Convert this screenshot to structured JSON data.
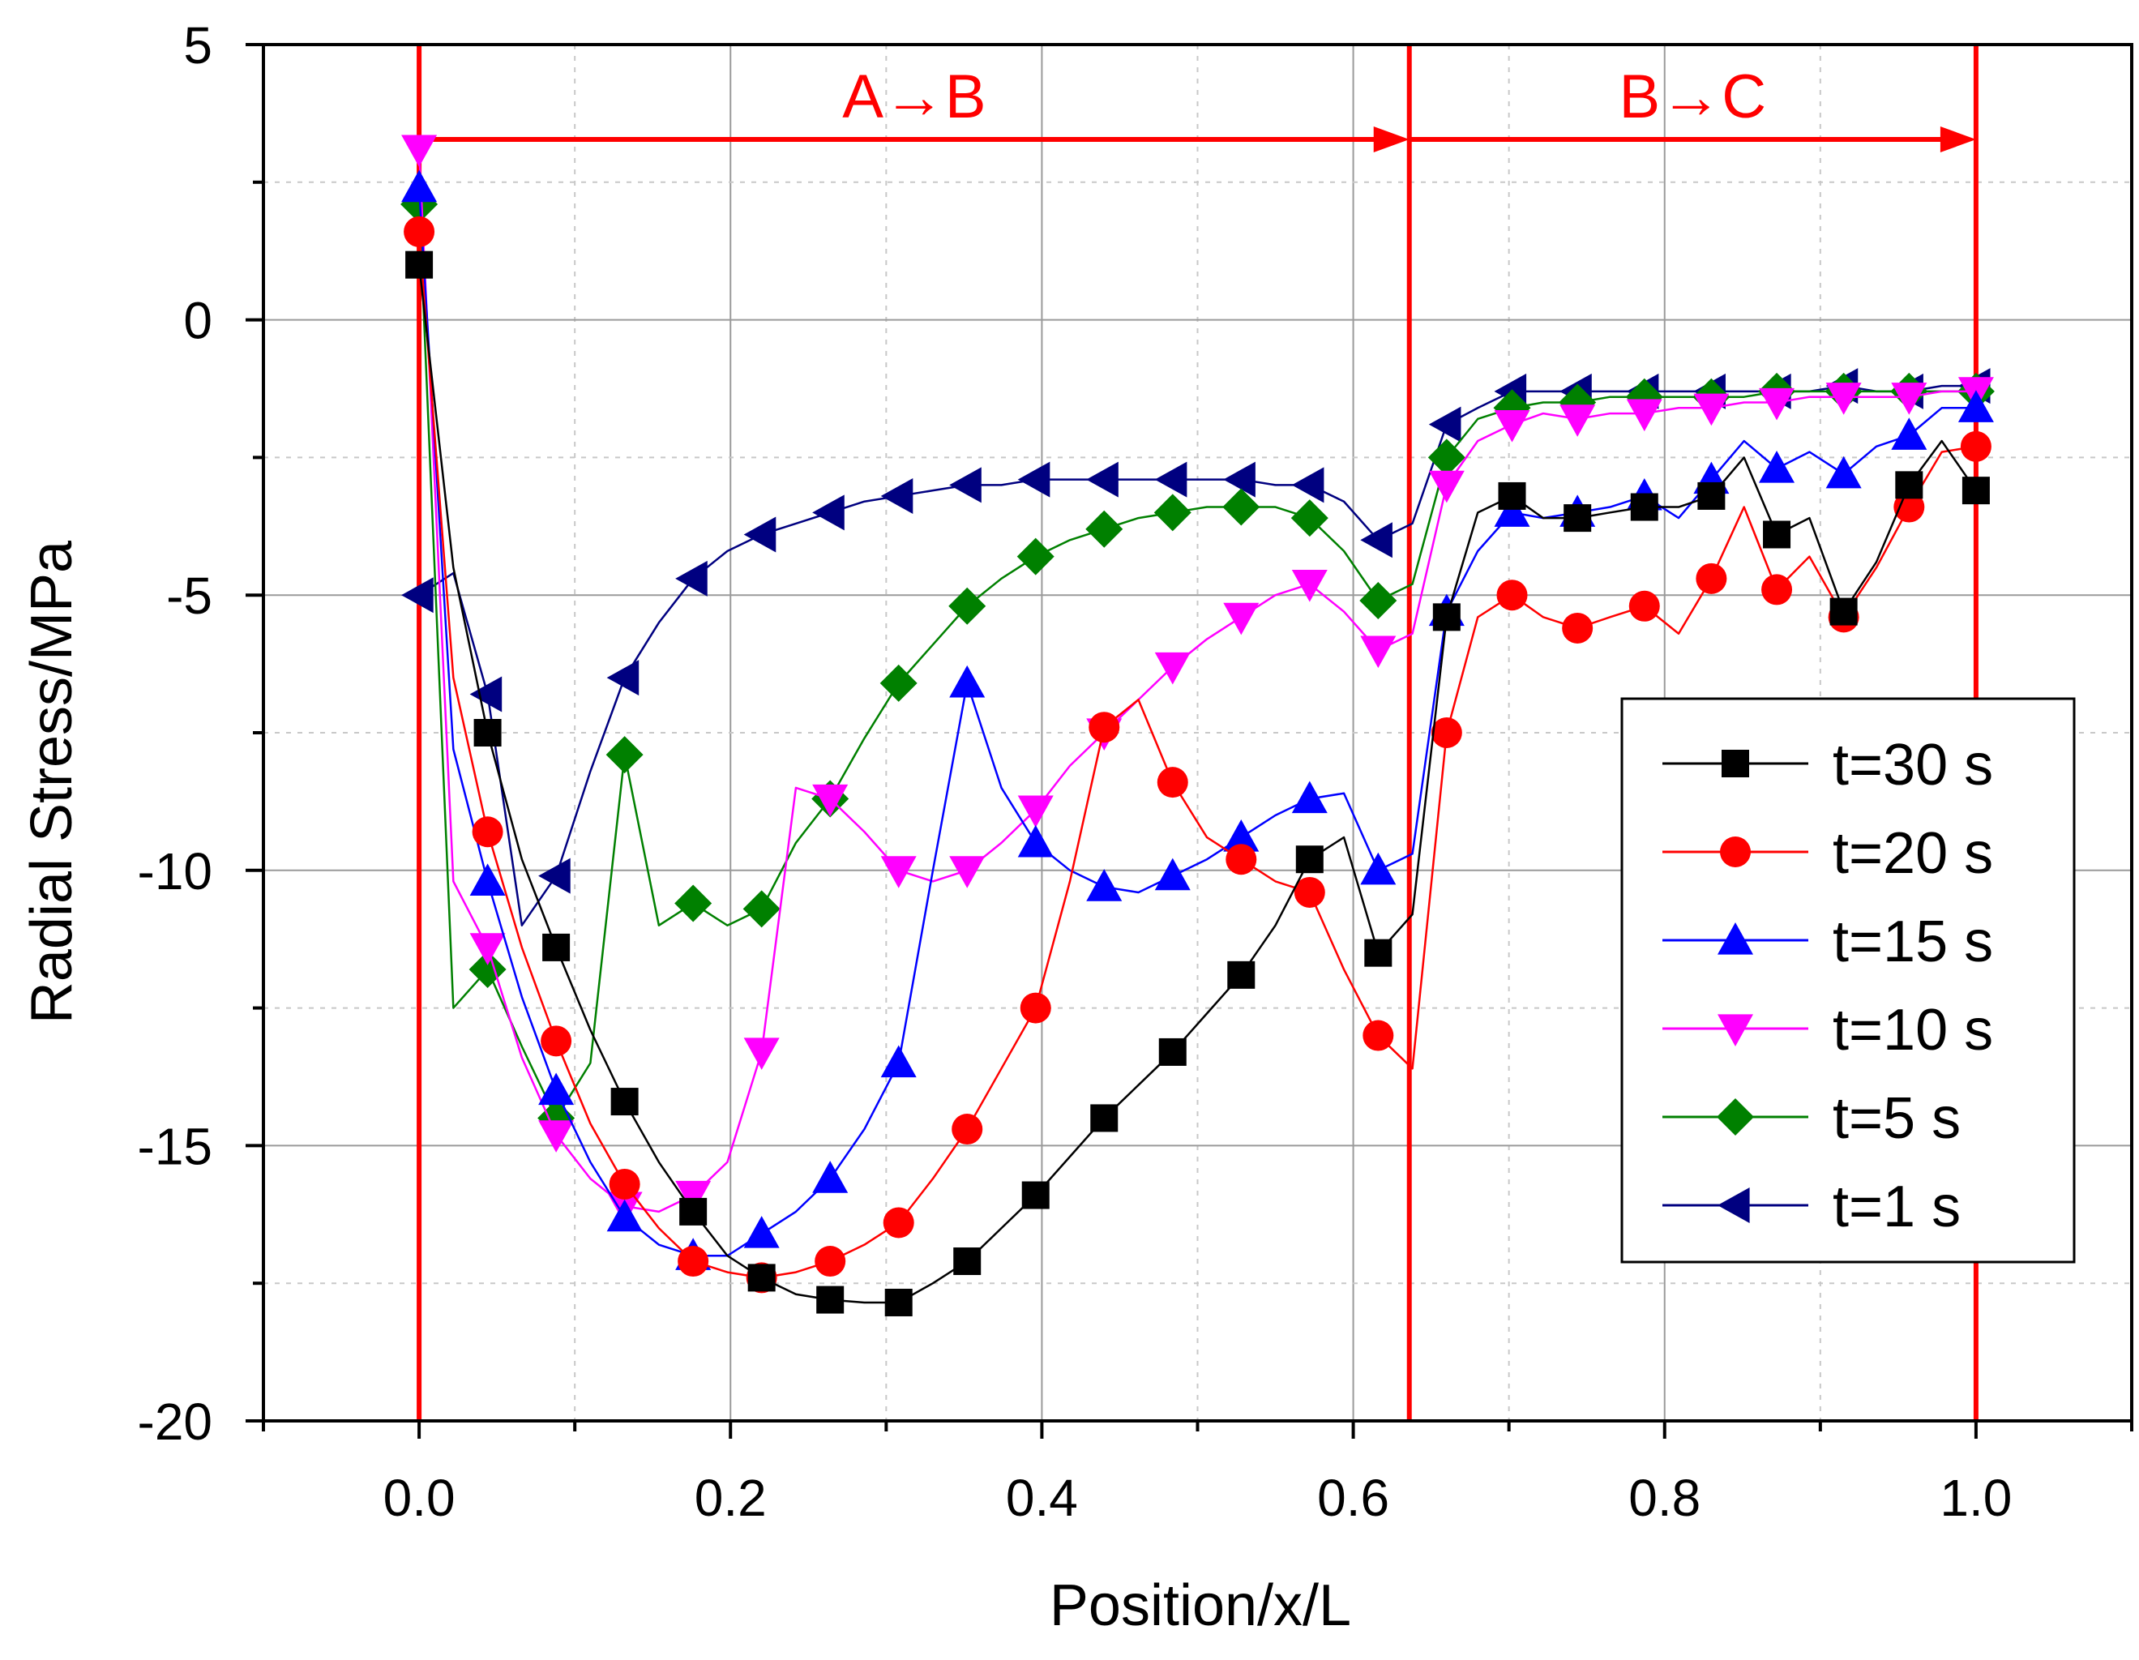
{
  "chart_data": {
    "type": "line",
    "title": "",
    "xlabel": "Position/x/L",
    "ylabel": "Radial Stress/MPa",
    "xlim": [
      -0.1,
      1.1
    ],
    "ylim": [
      -20,
      5
    ],
    "x_ticks": [
      "0.0",
      "0.2",
      "0.4",
      "0.6",
      "0.8",
      "1.0"
    ],
    "y_ticks": [
      "5",
      "0",
      "-5",
      "-10",
      "-15",
      "-20"
    ],
    "grid": true,
    "legend_position": "lower-right",
    "annotations": {
      "segment_ab_label": "A→B",
      "segment_bc_label": "B→C",
      "boundaries_x": [
        0.0,
        0.636,
        1.0
      ],
      "color": "#ff0000"
    },
    "series": [
      {
        "name": "t=30 s",
        "color": "#000000",
        "marker": "square",
        "points": [
          [
            0.0,
            1.0
          ],
          [
            0.022,
            -4.5
          ],
          [
            0.044,
            -7.5
          ],
          [
            0.066,
            -9.8
          ],
          [
            0.088,
            -11.4
          ],
          [
            0.11,
            -12.9
          ],
          [
            0.132,
            -14.2
          ],
          [
            0.154,
            -15.3
          ],
          [
            0.176,
            -16.2
          ],
          [
            0.198,
            -17.0
          ],
          [
            0.22,
            -17.4
          ],
          [
            0.242,
            -17.7
          ],
          [
            0.264,
            -17.8
          ],
          [
            0.286,
            -17.85
          ],
          [
            0.308,
            -17.85
          ],
          [
            0.33,
            -17.5
          ],
          [
            0.352,
            -17.1
          ],
          [
            0.374,
            -16.5
          ],
          [
            0.396,
            -15.9
          ],
          [
            0.418,
            -15.2
          ],
          [
            0.44,
            -14.5
          ],
          [
            0.462,
            -13.9
          ],
          [
            0.484,
            -13.3
          ],
          [
            0.506,
            -12.6
          ],
          [
            0.528,
            -11.9
          ],
          [
            0.55,
            -11.0
          ],
          [
            0.572,
            -9.8
          ],
          [
            0.594,
            -9.4
          ],
          [
            0.616,
            -11.5
          ],
          [
            0.638,
            -10.8
          ],
          [
            0.66,
            -5.4
          ],
          [
            0.68,
            -3.5
          ],
          [
            0.702,
            -3.2
          ],
          [
            0.722,
            -3.6
          ],
          [
            0.744,
            -3.6
          ],
          [
            0.765,
            -3.5
          ],
          [
            0.787,
            -3.4
          ],
          [
            0.809,
            -3.4
          ],
          [
            0.83,
            -3.2
          ],
          [
            0.851,
            -2.5
          ],
          [
            0.872,
            -3.9
          ],
          [
            0.893,
            -3.6
          ],
          [
            0.915,
            -5.3
          ],
          [
            0.936,
            -4.4
          ],
          [
            0.957,
            -3.0
          ],
          [
            0.978,
            -2.2
          ],
          [
            1.0,
            -3.1
          ]
        ],
        "marker_every": 2
      },
      {
        "name": "t=20 s",
        "color": "#ff0000",
        "marker": "circle",
        "points": [
          [
            0.0,
            1.6
          ],
          [
            0.022,
            -6.5
          ],
          [
            0.044,
            -9.3
          ],
          [
            0.066,
            -11.4
          ],
          [
            0.088,
            -13.1
          ],
          [
            0.11,
            -14.6
          ],
          [
            0.132,
            -15.7
          ],
          [
            0.154,
            -16.5
          ],
          [
            0.176,
            -17.1
          ],
          [
            0.198,
            -17.3
          ],
          [
            0.22,
            -17.4
          ],
          [
            0.242,
            -17.3
          ],
          [
            0.264,
            -17.1
          ],
          [
            0.286,
            -16.8
          ],
          [
            0.308,
            -16.4
          ],
          [
            0.33,
            -15.6
          ],
          [
            0.352,
            -14.7
          ],
          [
            0.374,
            -13.6
          ],
          [
            0.396,
            -12.5
          ],
          [
            0.418,
            -10.2
          ],
          [
            0.44,
            -7.4
          ],
          [
            0.462,
            -6.9
          ],
          [
            0.484,
            -8.4
          ],
          [
            0.506,
            -9.4
          ],
          [
            0.528,
            -9.8
          ],
          [
            0.55,
            -10.2
          ],
          [
            0.572,
            -10.4
          ],
          [
            0.594,
            -11.8
          ],
          [
            0.616,
            -13.0
          ],
          [
            0.638,
            -13.6
          ],
          [
            0.66,
            -7.5
          ],
          [
            0.68,
            -5.4
          ],
          [
            0.702,
            -5.0
          ],
          [
            0.722,
            -5.4
          ],
          [
            0.744,
            -5.6
          ],
          [
            0.765,
            -5.4
          ],
          [
            0.787,
            -5.2
          ],
          [
            0.809,
            -5.7
          ],
          [
            0.83,
            -4.7
          ],
          [
            0.851,
            -3.4
          ],
          [
            0.872,
            -4.9
          ],
          [
            0.893,
            -4.3
          ],
          [
            0.915,
            -5.4
          ],
          [
            0.936,
            -4.5
          ],
          [
            0.957,
            -3.4
          ],
          [
            0.978,
            -2.4
          ],
          [
            1.0,
            -2.3
          ]
        ],
        "marker_every": 2
      },
      {
        "name": "t=15 s",
        "color": "#0000ff",
        "marker": "triangle-up",
        "points": [
          [
            0.0,
            2.4
          ],
          [
            0.022,
            -7.8
          ],
          [
            0.044,
            -10.2
          ],
          [
            0.066,
            -12.3
          ],
          [
            0.088,
            -14.0
          ],
          [
            0.11,
            -15.3
          ],
          [
            0.132,
            -16.3
          ],
          [
            0.154,
            -16.8
          ],
          [
            0.176,
            -17.0
          ],
          [
            0.198,
            -17.0
          ],
          [
            0.22,
            -16.6
          ],
          [
            0.242,
            -16.2
          ],
          [
            0.264,
            -15.6
          ],
          [
            0.286,
            -14.7
          ],
          [
            0.308,
            -13.5
          ],
          [
            0.33,
            -10.0
          ],
          [
            0.352,
            -6.6
          ],
          [
            0.374,
            -8.5
          ],
          [
            0.396,
            -9.5
          ],
          [
            0.418,
            -10.0
          ],
          [
            0.44,
            -10.3
          ],
          [
            0.462,
            -10.4
          ],
          [
            0.484,
            -10.1
          ],
          [
            0.506,
            -9.8
          ],
          [
            0.528,
            -9.4
          ],
          [
            0.55,
            -9.0
          ],
          [
            0.572,
            -8.7
          ],
          [
            0.594,
            -8.6
          ],
          [
            0.616,
            -10.0
          ],
          [
            0.638,
            -9.7
          ],
          [
            0.66,
            -5.3
          ],
          [
            0.68,
            -4.2
          ],
          [
            0.702,
            -3.5
          ],
          [
            0.722,
            -3.6
          ],
          [
            0.744,
            -3.5
          ],
          [
            0.765,
            -3.4
          ],
          [
            0.787,
            -3.2
          ],
          [
            0.809,
            -3.6
          ],
          [
            0.83,
            -2.9
          ],
          [
            0.851,
            -2.2
          ],
          [
            0.872,
            -2.7
          ],
          [
            0.893,
            -2.4
          ],
          [
            0.915,
            -2.8
          ],
          [
            0.936,
            -2.3
          ],
          [
            0.957,
            -2.1
          ],
          [
            0.978,
            -1.6
          ],
          [
            1.0,
            -1.6
          ]
        ],
        "marker_every": 2
      },
      {
        "name": "t=10 s",
        "color": "#ff00ff",
        "marker": "triangle-down",
        "points": [
          [
            0.0,
            3.1
          ],
          [
            0.022,
            -10.2
          ],
          [
            0.044,
            -11.4
          ],
          [
            0.066,
            -13.4
          ],
          [
            0.088,
            -14.8
          ],
          [
            0.11,
            -15.6
          ],
          [
            0.132,
            -16.1
          ],
          [
            0.154,
            -16.2
          ],
          [
            0.176,
            -15.9
          ],
          [
            0.198,
            -15.3
          ],
          [
            0.22,
            -13.3
          ],
          [
            0.242,
            -8.5
          ],
          [
            0.264,
            -8.7
          ],
          [
            0.286,
            -9.3
          ],
          [
            0.308,
            -10.0
          ],
          [
            0.33,
            -10.2
          ],
          [
            0.352,
            -10.0
          ],
          [
            0.374,
            -9.5
          ],
          [
            0.396,
            -8.9
          ],
          [
            0.418,
            -8.1
          ],
          [
            0.44,
            -7.5
          ],
          [
            0.462,
            -6.9
          ],
          [
            0.484,
            -6.3
          ],
          [
            0.506,
            -5.8
          ],
          [
            0.528,
            -5.4
          ],
          [
            0.55,
            -5.0
          ],
          [
            0.572,
            -4.8
          ],
          [
            0.594,
            -5.3
          ],
          [
            0.616,
            -6.0
          ],
          [
            0.638,
            -5.7
          ],
          [
            0.66,
            -3.0
          ],
          [
            0.68,
            -2.2
          ],
          [
            0.702,
            -1.9
          ],
          [
            0.722,
            -1.7
          ],
          [
            0.744,
            -1.8
          ],
          [
            0.765,
            -1.7
          ],
          [
            0.787,
            -1.7
          ],
          [
            0.809,
            -1.6
          ],
          [
            0.83,
            -1.6
          ],
          [
            0.851,
            -1.5
          ],
          [
            0.872,
            -1.5
          ],
          [
            0.893,
            -1.4
          ],
          [
            0.915,
            -1.4
          ],
          [
            0.936,
            -1.4
          ],
          [
            0.957,
            -1.4
          ],
          [
            0.978,
            -1.3
          ],
          [
            1.0,
            -1.3
          ]
        ],
        "marker_every": 2
      },
      {
        "name": "t=5 s",
        "color": "#008000",
        "marker": "diamond",
        "points": [
          [
            0.0,
            2.1
          ],
          [
            0.022,
            -12.5
          ],
          [
            0.044,
            -11.8
          ],
          [
            0.066,
            -13.2
          ],
          [
            0.088,
            -14.5
          ],
          [
            0.11,
            -13.5
          ],
          [
            0.132,
            -7.9
          ],
          [
            0.154,
            -11.0
          ],
          [
            0.176,
            -10.6
          ],
          [
            0.198,
            -11.0
          ],
          [
            0.22,
            -10.7
          ],
          [
            0.242,
            -9.5
          ],
          [
            0.264,
            -8.7
          ],
          [
            0.286,
            -7.6
          ],
          [
            0.308,
            -6.6
          ],
          [
            0.33,
            -5.9
          ],
          [
            0.352,
            -5.2
          ],
          [
            0.374,
            -4.7
          ],
          [
            0.396,
            -4.3
          ],
          [
            0.418,
            -4.0
          ],
          [
            0.44,
            -3.8
          ],
          [
            0.462,
            -3.6
          ],
          [
            0.484,
            -3.5
          ],
          [
            0.506,
            -3.4
          ],
          [
            0.528,
            -3.4
          ],
          [
            0.55,
            -3.4
          ],
          [
            0.572,
            -3.6
          ],
          [
            0.594,
            -4.2
          ],
          [
            0.616,
            -5.1
          ],
          [
            0.638,
            -4.8
          ],
          [
            0.66,
            -2.5
          ],
          [
            0.68,
            -1.8
          ],
          [
            0.702,
            -1.6
          ],
          [
            0.722,
            -1.5
          ],
          [
            0.744,
            -1.5
          ],
          [
            0.765,
            -1.4
          ],
          [
            0.787,
            -1.4
          ],
          [
            0.809,
            -1.4
          ],
          [
            0.83,
            -1.4
          ],
          [
            0.851,
            -1.4
          ],
          [
            0.872,
            -1.3
          ],
          [
            0.893,
            -1.3
          ],
          [
            0.915,
            -1.3
          ],
          [
            0.936,
            -1.3
          ],
          [
            0.957,
            -1.3
          ],
          [
            0.978,
            -1.3
          ],
          [
            1.0,
            -1.3
          ]
        ],
        "marker_every": 2
      },
      {
        "name": "t=1 s",
        "color": "#000080",
        "marker": "triangle-left",
        "points": [
          [
            0.0,
            -5.0
          ],
          [
            0.022,
            -4.6
          ],
          [
            0.044,
            -6.8
          ],
          [
            0.066,
            -11.0
          ],
          [
            0.088,
            -10.1
          ],
          [
            0.11,
            -8.2
          ],
          [
            0.132,
            -6.5
          ],
          [
            0.154,
            -5.5
          ],
          [
            0.176,
            -4.7
          ],
          [
            0.198,
            -4.2
          ],
          [
            0.22,
            -3.9
          ],
          [
            0.242,
            -3.7
          ],
          [
            0.264,
            -3.5
          ],
          [
            0.286,
            -3.3
          ],
          [
            0.308,
            -3.2
          ],
          [
            0.33,
            -3.1
          ],
          [
            0.352,
            -3.0
          ],
          [
            0.374,
            -3.0
          ],
          [
            0.396,
            -2.9
          ],
          [
            0.418,
            -2.9
          ],
          [
            0.44,
            -2.9
          ],
          [
            0.462,
            -2.9
          ],
          [
            0.484,
            -2.9
          ],
          [
            0.506,
            -2.9
          ],
          [
            0.528,
            -2.9
          ],
          [
            0.55,
            -3.0
          ],
          [
            0.572,
            -3.0
          ],
          [
            0.594,
            -3.3
          ],
          [
            0.616,
            -4.0
          ],
          [
            0.638,
            -3.7
          ],
          [
            0.66,
            -1.9
          ],
          [
            0.68,
            -1.6
          ],
          [
            0.702,
            -1.3
          ],
          [
            0.722,
            -1.3
          ],
          [
            0.744,
            -1.3
          ],
          [
            0.765,
            -1.3
          ],
          [
            0.787,
            -1.3
          ],
          [
            0.809,
            -1.3
          ],
          [
            0.83,
            -1.3
          ],
          [
            0.851,
            -1.3
          ],
          [
            0.872,
            -1.3
          ],
          [
            0.893,
            -1.3
          ],
          [
            0.915,
            -1.2
          ],
          [
            0.936,
            -1.3
          ],
          [
            0.957,
            -1.3
          ],
          [
            0.978,
            -1.2
          ],
          [
            1.0,
            -1.2
          ]
        ],
        "marker_every": 2
      }
    ]
  }
}
